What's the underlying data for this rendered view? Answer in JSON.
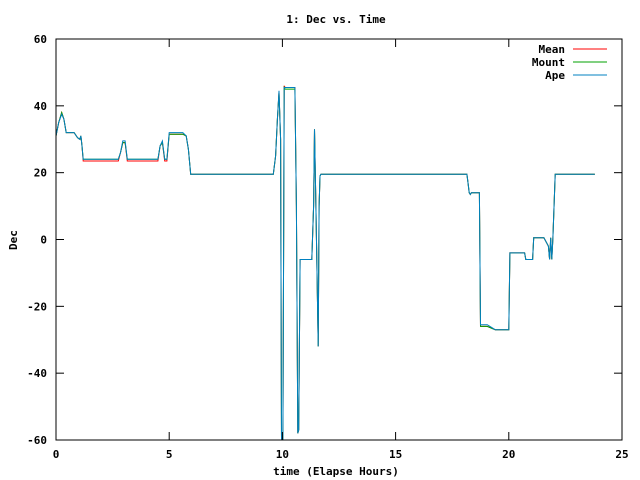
{
  "chart_data": {
    "type": "line",
    "title": "1: Dec vs. Time",
    "xlabel": "time (Elapse Hours)",
    "ylabel": "Dec",
    "xlim": [
      0,
      25
    ],
    "ylim": [
      -60,
      60
    ],
    "xticks": [
      0,
      5,
      10,
      15,
      20,
      25
    ],
    "yticks": [
      -60,
      -40,
      -20,
      0,
      20,
      40,
      60
    ],
    "grid": false,
    "legend_position": "top-right",
    "series": [
      {
        "name": "Mean",
        "color": "#ff0000",
        "x": [
          0,
          0.12,
          0.25,
          0.35,
          0.45,
          0.6,
          0.8,
          0.95,
          1.05,
          1.1,
          1.15,
          1.2,
          2.75,
          2.85,
          2.95,
          3.05,
          3.15,
          4.5,
          4.6,
          4.7,
          4.8,
          4.9,
          5.0,
          5.6,
          5.75,
          5.85,
          5.95,
          9.6,
          9.7,
          9.78,
          9.85,
          9.92,
          9.96,
          10.02,
          10.08,
          10.12,
          10.2,
          10.3,
          10.45,
          10.55,
          10.62,
          10.68,
          10.72,
          10.78,
          10.82,
          11.2,
          11.3,
          11.38,
          11.42,
          11.48,
          11.52,
          11.58,
          11.62,
          11.66,
          11.7,
          11.75,
          11.8,
          18.15,
          18.2,
          18.25,
          18.3,
          18.35,
          18.5,
          18.7,
          18.75,
          18.85,
          19.05,
          19.4,
          19.75,
          19.9,
          20.0,
          20.05,
          20.7,
          20.75,
          20.9,
          21.05,
          21.1,
          21.2,
          21.5,
          21.55,
          21.75,
          21.8,
          21.85,
          21.9,
          21.95,
          22.05,
          22.25,
          23.8
        ],
        "values": [
          31,
          35,
          38,
          36,
          32,
          32,
          32,
          30.5,
          30,
          31,
          28,
          23.5,
          23.5,
          26,
          29,
          29,
          23.5,
          23.5,
          28,
          29,
          23.5,
          23.5,
          31.5,
          31.5,
          31,
          27,
          19.5,
          19.5,
          25,
          36,
          44,
          30,
          -60,
          -60,
          46,
          45.5,
          45.5,
          45.5,
          45.5,
          45.5,
          10,
          -58,
          -57,
          -6,
          -6,
          -6,
          -6,
          10,
          33,
          10,
          -6,
          -32,
          10,
          19,
          19.5,
          19.5,
          19.5,
          19.5,
          17,
          14,
          13.5,
          14,
          14,
          14,
          -26,
          -26,
          -26,
          -27,
          -27,
          -27,
          -27,
          -4,
          -4,
          -6,
          -6,
          -6,
          0.5,
          0.5,
          0.5,
          0.5,
          -2,
          -6,
          0.5,
          -6,
          0.5,
          19.5,
          19.5,
          19.5
        ]
      },
      {
        "name": "Mount",
        "color": "#00a000",
        "x": [
          0,
          0.12,
          0.25,
          0.35,
          0.45,
          0.6,
          0.8,
          0.95,
          1.05,
          1.1,
          1.15,
          1.2,
          2.75,
          2.85,
          2.95,
          3.05,
          3.15,
          4.5,
          4.6,
          4.7,
          4.8,
          4.9,
          5.0,
          5.6,
          5.75,
          5.85,
          5.95,
          9.6,
          9.7,
          9.78,
          9.85,
          9.92,
          9.96,
          10.02,
          10.08,
          10.12,
          10.2,
          10.3,
          10.45,
          10.55,
          10.62,
          10.68,
          10.72,
          10.78,
          10.82,
          11.2,
          11.3,
          11.38,
          11.42,
          11.48,
          11.52,
          11.58,
          11.62,
          11.66,
          11.7,
          11.75,
          11.8,
          18.15,
          18.2,
          18.25,
          18.3,
          18.35,
          18.5,
          18.7,
          18.75,
          18.85,
          19.05,
          19.4,
          19.75,
          19.9,
          20.0,
          20.05,
          20.7,
          20.75,
          20.9,
          21.05,
          21.1,
          21.2,
          21.5,
          21.55,
          21.75,
          21.8,
          21.85,
          21.9,
          21.95,
          22.05,
          22.25,
          23.8
        ],
        "values": [
          31,
          35,
          38,
          36,
          32,
          32,
          32,
          30.5,
          30,
          31,
          28,
          24,
          24,
          26,
          29,
          29,
          24,
          24,
          28,
          29,
          24,
          24,
          31.5,
          31.5,
          31,
          27,
          19.5,
          19.5,
          25,
          36,
          44,
          30,
          -60,
          -60,
          45.5,
          45,
          45,
          45,
          45,
          45,
          10,
          -58,
          -57,
          -6,
          -6,
          -6,
          -6,
          10,
          33,
          10,
          -6,
          -32,
          10,
          19,
          19.5,
          19.5,
          19.5,
          19.5,
          17,
          14,
          13.5,
          14,
          14,
          14,
          -26,
          -26,
          -26,
          -27,
          -27,
          -27,
          -27,
          -4,
          -4,
          -6,
          -6,
          -6,
          0.5,
          0.5,
          0.5,
          0.5,
          -2,
          -6,
          0.5,
          -6,
          0.5,
          19.5,
          19.5,
          19.5
        ]
      },
      {
        "name": "Ape",
        "color": "#0080c0",
        "x": [
          0,
          0.12,
          0.25,
          0.35,
          0.45,
          0.6,
          0.8,
          0.95,
          1.05,
          1.1,
          1.15,
          1.2,
          2.75,
          2.85,
          2.95,
          3.05,
          3.15,
          4.5,
          4.6,
          4.7,
          4.8,
          4.9,
          5.0,
          5.6,
          5.75,
          5.85,
          5.95,
          9.6,
          9.7,
          9.78,
          9.85,
          9.92,
          9.96,
          10.02,
          10.08,
          10.12,
          10.2,
          10.3,
          10.45,
          10.55,
          10.62,
          10.68,
          10.72,
          10.78,
          10.82,
          11.2,
          11.3,
          11.38,
          11.42,
          11.48,
          11.52,
          11.58,
          11.62,
          11.66,
          11.7,
          11.75,
          11.8,
          18.15,
          18.2,
          18.25,
          18.3,
          18.35,
          18.5,
          18.7,
          18.75,
          18.85,
          19.05,
          19.4,
          19.75,
          19.9,
          20.0,
          20.05,
          20.7,
          20.75,
          20.9,
          21.05,
          21.1,
          21.2,
          21.5,
          21.55,
          21.75,
          21.8,
          21.85,
          21.9,
          21.95,
          22.05,
          22.25,
          23.8
        ],
        "values": [
          31,
          35,
          37.5,
          36,
          32,
          32,
          32,
          30.5,
          30,
          31,
          28,
          24,
          24,
          26,
          29.5,
          29.5,
          24,
          24,
          28,
          29.5,
          24,
          24,
          32,
          32,
          31,
          27,
          19.5,
          19.5,
          25,
          36,
          44.5,
          30,
          -60,
          -60,
          45.5,
          45.5,
          45.5,
          45.5,
          45.5,
          45.5,
          10,
          -58,
          -57,
          -6,
          -6,
          -6,
          -6,
          10,
          33,
          10,
          -6,
          -32,
          10,
          19,
          19.5,
          19.5,
          19.5,
          19.5,
          17,
          14,
          13.5,
          14,
          14,
          14,
          -25.5,
          -25.5,
          -25.5,
          -27,
          -27,
          -27,
          -27,
          -4,
          -4,
          -6,
          -6,
          -6,
          0.5,
          0.5,
          0.5,
          0.5,
          -2,
          -6,
          0.5,
          -6,
          0.5,
          19.5,
          19.5,
          19.5
        ]
      }
    ]
  }
}
